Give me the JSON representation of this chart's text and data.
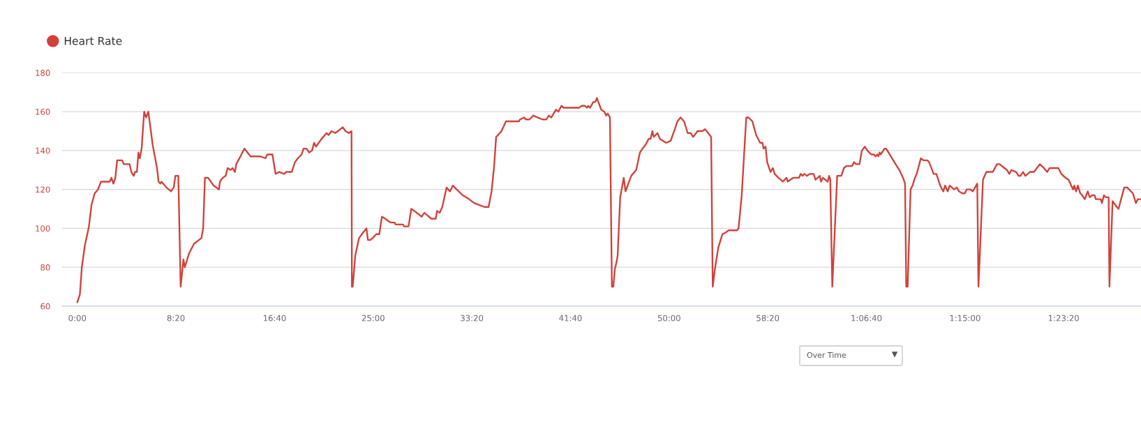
{
  "chart_data": {
    "type": "line",
    "x": [
      0,
      13,
      23,
      38,
      59,
      72,
      88,
      105,
      120,
      164,
      173,
      183,
      193,
      202,
      227,
      236,
      265,
      274,
      286,
      293,
      302,
      310,
      317,
      326,
      339,
      349,
      360,
      382,
      404,
      412,
      421,
      427,
      452,
      475,
      489,
      497,
      512,
      524,
      538,
      545,
      566,
      591,
      629,
      638,
      647,
      663,
      691,
      718,
      723,
      737,
      752,
      762,
      777,
      787,
      799,
      806,
      832,
      847,
      878,
      929,
      954,
      963,
      989,
      1005,
      1024,
      1049,
      1059,
      1087,
      1103,
      1118,
      1137,
      1147,
      1162,
      1175,
      1190,
      1200,
      1210,
      1238,
      1264,
      1274,
      1289,
      1308,
      1321,
      1346,
      1359,
      1377,
      1390,
      1392,
      1396,
      1409,
      1428,
      1450,
      1466,
      1473,
      1486,
      1497,
      1516,
      1531,
      1544,
      1561,
      1573,
      1588,
      1609,
      1613,
      1651,
      1657,
      1679,
      1693,
      1708,
      1733,
      1746,
      1759,
      1771,
      1794,
      1817,
      1824,
      1837,
      1850,
      1872,
      1889,
      1904,
      1923,
      1954,
      1986,
      2011,
      2037,
      2064,
      2085,
      2100,
      2113,
      2123,
      2133,
      2150,
      2173,
      2239,
      2244,
      2264,
      2274,
      2292,
      2312,
      2333,
      2358,
      2378,
      2390,
      2403,
      2426,
      2439,
      2454,
      2466,
      2545,
      2555,
      2574,
      2583,
      2590,
      2599,
      2616,
      2626,
      2634,
      2641,
      2656,
      2671,
      2681,
      2689,
      2700,
      2710,
      2717,
      2725,
      2734,
      2739,
      2752,
      2770,
      2779,
      2808,
      2833,
      2852,
      2865,
      2881,
      2896,
      2906,
      2915,
      2922,
      2941,
      2953,
      2985,
      3008,
      3029,
      3042,
      3058,
      3076,
      3094,
      3109,
      3122,
      3144,
      3169,
      3182,
      3198,
      3213,
      3221,
      3232,
      3249,
      3270,
      3289,
      3302,
      3344,
      3352,
      3368,
      3391,
      3403,
      3422,
      3441,
      3461,
      3473,
      3479,
      3489,
      3497,
      3514,
      3526,
      3535,
      3554,
      3566,
      3576,
      3595,
      3601,
      3614,
      3629,
      3658,
      3667,
      3677,
      3685,
      3698,
      3714,
      3733,
      3742,
      3764,
      3770,
      3779,
      3804,
      3811,
      3817,
      3827,
      3852,
      3873,
      3886,
      3898,
      3927,
      3937,
      3948,
      3965,
      3977,
      3992,
      4005,
      4024,
      4038,
      4046,
      4055,
      4061,
      4067,
      4073,
      4092,
      4100,
      4124,
      4142,
      4167,
      4186,
      4196,
      4202,
      4209,
      4224,
      4234,
      4246,
      4255,
      4276,
      4289,
      4309,
      4318,
      4341,
      4355,
      4374,
      4390,
      4399,
      4412,
      4422,
      4445,
      4458,
      4470,
      4487,
      4499,
      4508,
      4528,
      4539,
      4562,
      4568,
      4591,
      4608,
      4641,
      4662,
      4675,
      4700,
      4712,
      4725,
      4735,
      4759,
      4771,
      4781,
      4794,
      4806,
      4829,
      4850,
      4879,
      4900,
      4916,
      4929,
      4973,
      4988,
      5009,
      5025,
      5038,
      5048,
      5054,
      5063,
      5072,
      5084,
      5094,
      5107,
      5122,
      5132,
      5144,
      5157,
      5163,
      5188,
      5194,
      5204,
      5213,
      5228,
      5232,
      5248,
      5269,
      5278,
      5307,
      5322,
      5351,
      5366,
      5376,
      5392
    ],
    "series": [
      {
        "name": "Heart Rate",
        "color": "#d0413a",
        "values": [
          62,
          66,
          80,
          91,
          101,
          112,
          118,
          120,
          124,
          124,
          126,
          123,
          126,
          135,
          135,
          133,
          133,
          129,
          127,
          129,
          129,
          139,
          136,
          141,
          160,
          157,
          160,
          143,
          131,
          124,
          123,
          124,
          121,
          119,
          121,
          127,
          127,
          70,
          84,
          80,
          87,
          92,
          95,
          100,
          126,
          126,
          122,
          120,
          124,
          126,
          127,
          131,
          130,
          131,
          129,
          133,
          138,
          141,
          137,
          137,
          136,
          138,
          138,
          128,
          129,
          128,
          129,
          129,
          134,
          136,
          138,
          141,
          141,
          139,
          140,
          144,
          142,
          146,
          149,
          148,
          150,
          149,
          150,
          152,
          150,
          149,
          150,
          70,
          70,
          86,
          95,
          98,
          100,
          94,
          94,
          95,
          97,
          97,
          106,
          105,
          104,
          103,
          103,
          102,
          102,
          101,
          101,
          110,
          109,
          107,
          106,
          108,
          107,
          105,
          105,
          109,
          108,
          111,
          121,
          119,
          122,
          120,
          117,
          115,
          113,
          112,
          111,
          111,
          119,
          132,
          147,
          148,
          150,
          155,
          155,
          156,
          157,
          156,
          156,
          158,
          157,
          156,
          156,
          158,
          157,
          161,
          160,
          163,
          162,
          162,
          163,
          163,
          162,
          163,
          162,
          165,
          165,
          167,
          165,
          161,
          160,
          158,
          159,
          157,
          70,
          70,
          79,
          83,
          86,
          116,
          126,
          119,
          127,
          130,
          139,
          141,
          143,
          146,
          146,
          150,
          147,
          149,
          146,
          144,
          145,
          151,
          155,
          157,
          155,
          149,
          149,
          147,
          150,
          150,
          151,
          149,
          147,
          70,
          79,
          90,
          97,
          98,
          99,
          99,
          100,
          117,
          157,
          157,
          155,
          148,
          144,
          144,
          141,
          142,
          134,
          129,
          131,
          128,
          126,
          125,
          124,
          126,
          124,
          125,
          126,
          126,
          128,
          127,
          128,
          127,
          128,
          128,
          125,
          127,
          124,
          126,
          124,
          127,
          125,
          70,
          127,
          127,
          131,
          132,
          132,
          134,
          133,
          133,
          140,
          142,
          140,
          138,
          138,
          137,
          138,
          137,
          139,
          138,
          141,
          141,
          137,
          134,
          130,
          126,
          123,
          70,
          70,
          120,
          122,
          126,
          128,
          136,
          135,
          135,
          134,
          128,
          128,
          122,
          119,
          122,
          119,
          122,
          120,
          121,
          119,
          118,
          118,
          120,
          120,
          119,
          123,
          70,
          125,
          129,
          129,
          133,
          133,
          131,
          130,
          128,
          130,
          129,
          127,
          127,
          129,
          127,
          129,
          129,
          133,
          131,
          129,
          131,
          131,
          128,
          126,
          125,
          122,
          120,
          122,
          119,
          122,
          118,
          117,
          115,
          119,
          116,
          117,
          117,
          115,
          115,
          113,
          117,
          116,
          116,
          70,
          114,
          111,
          110,
          121,
          121,
          118,
          113,
          115,
          115
        ]
      }
    ],
    "xlim": [
      -77,
      5392
    ],
    "xticks": [
      {
        "value": 0,
        "label": "0:00"
      },
      {
        "value": 500,
        "label": "8:20"
      },
      {
        "value": 1000,
        "label": "16:40"
      },
      {
        "value": 1500,
        "label": "25:00"
      },
      {
        "value": 2000,
        "label": "33:20"
      },
      {
        "value": 2500,
        "label": "41:40"
      },
      {
        "value": 3000,
        "label": "50:00"
      },
      {
        "value": 3500,
        "label": "58:20"
      },
      {
        "value": 4000,
        "label": "1:06:40"
      },
      {
        "value": 4500,
        "label": "1:15:00"
      },
      {
        "value": 5000,
        "label": "1:23:20"
      }
    ],
    "ylim": [
      60,
      180
    ],
    "yticks": [
      60,
      80,
      100,
      120,
      140,
      160,
      180
    ],
    "grid": "y",
    "legend": "top left",
    "annotations": [
      "Over Time"
    ]
  }
}
